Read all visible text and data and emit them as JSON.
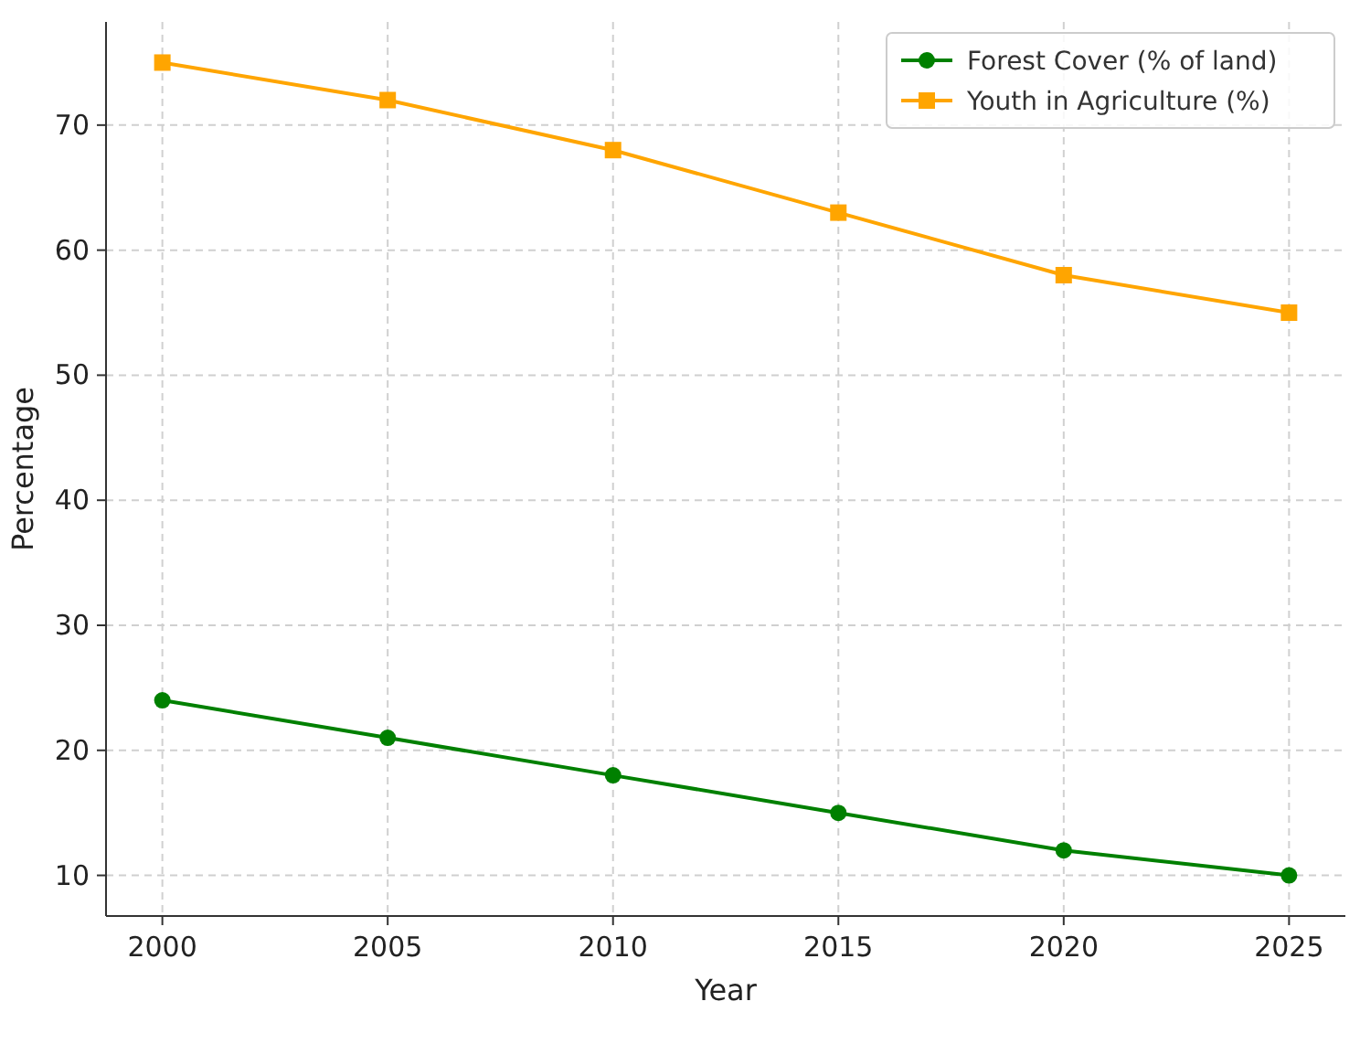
{
  "chart_data": {
    "type": "line",
    "xlabel": "Year",
    "ylabel": "Percentage",
    "x": [
      2000,
      2005,
      2010,
      2015,
      2020,
      2025
    ],
    "series": [
      {
        "name": "Forest Cover (% of land)",
        "color": "#008000",
        "marker": "circle",
        "values": [
          24,
          21,
          18,
          15,
          12,
          10
        ]
      },
      {
        "name": "Youth in Agriculture (%)",
        "color": "#ffa500",
        "marker": "square",
        "values": [
          75,
          72,
          68,
          63,
          58,
          55
        ]
      }
    ],
    "xlim": [
      1998.75,
      2026.25
    ],
    "xticks": [
      2000,
      2005,
      2010,
      2015,
      2020,
      2025
    ],
    "ylim": [
      6.75,
      78.25
    ],
    "yticks": [
      10,
      20,
      30,
      40,
      50,
      60,
      70
    ],
    "grid": true,
    "legend": "top right",
    "line_style": "solid"
  }
}
